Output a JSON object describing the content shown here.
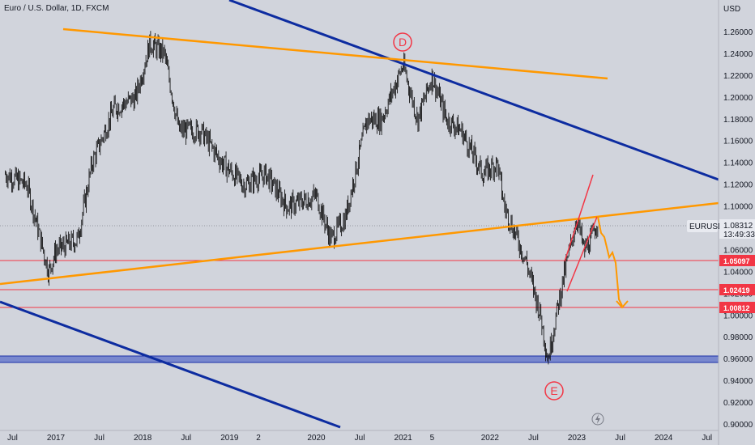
{
  "header": {
    "symbol_title": "Euro / U.S. Dollar, 1D, FXCM"
  },
  "price_axis": {
    "currency": "USD",
    "ticks": [
      "1.26000",
      "1.24000",
      "1.22000",
      "1.20000",
      "1.18000",
      "1.16000",
      "1.14000",
      "1.12000",
      "1.10000",
      "1.08000",
      "1.06000",
      "1.04000",
      "1.02000",
      "1.00000",
      "0.98000",
      "0.96000",
      "0.94000",
      "0.92000",
      "0.90000"
    ]
  },
  "time_axis": {
    "ticks": [
      "Jul",
      "2017",
      "Jul",
      "2018",
      "Jul",
      "2019",
      "2",
      "2020",
      "Jul",
      "2021",
      "5",
      "2022",
      "Jul",
      "2023",
      "Jul",
      "2024",
      "Jul"
    ]
  },
  "last_price": {
    "symbol": "EURUSD",
    "price": "1.08312",
    "countdown": "13:49:33"
  },
  "levels": [
    {
      "label": "1.05097",
      "value": 1.05097
    },
    {
      "label": "1.02419",
      "value": 1.02419
    },
    {
      "label": "1.00812",
      "value": 1.00812
    }
  ],
  "wave_labels": {
    "d": "D",
    "e": "E"
  },
  "colors": {
    "background": "#d1d4dc",
    "candles": "#000000",
    "orange_line": "#ff9800",
    "blue_line": "#0d2ca0",
    "level_red": "#f23645",
    "support_zone": "#5b6fc9",
    "price_tag_bg": "#e8eaf0"
  },
  "chart_data": {
    "type": "line",
    "title": "Euro / U.S. Dollar, 1D, FXCM",
    "x_range": [
      "2016-06",
      "2024-08"
    ],
    "ylim": [
      0.9,
      1.27
    ],
    "grid": false,
    "series": [
      {
        "x": [
          "2016-06",
          "2016-09",
          "2016-12",
          "2017-01",
          "2017-04",
          "2017-06",
          "2017-09",
          "2017-12",
          "2018-02",
          "2018-04",
          "2018-06",
          "2018-09",
          "2018-12",
          "2019-03",
          "2019-06",
          "2019-09",
          "2020-01",
          "2020-03",
          "2020-05",
          "2020-08",
          "2020-10",
          "2021-01",
          "2021-03",
          "2021-05",
          "2021-07",
          "2021-09",
          "2021-12",
          "2022-02",
          "2022-03",
          "2022-06",
          "2022-08",
          "2022-09",
          "2022-11",
          "2023-01",
          "2023-02",
          "2023-03",
          "2023-04"
        ],
        "values": [
          1.13,
          1.12,
          1.04,
          1.06,
          1.07,
          1.14,
          1.19,
          1.2,
          1.25,
          1.24,
          1.17,
          1.17,
          1.14,
          1.12,
          1.13,
          1.1,
          1.11,
          1.07,
          1.09,
          1.18,
          1.18,
          1.23,
          1.18,
          1.22,
          1.18,
          1.17,
          1.13,
          1.14,
          1.1,
          1.05,
          1.0,
          0.96,
          1.03,
          1.09,
          1.06,
          1.07,
          1.09
        ]
      }
    ],
    "trendlines": [
      {
        "color": "orange",
        "from": [
          "2016-12",
          1.265
        ],
        "to": [
          "2023-06",
          1.218
        ]
      },
      {
        "color": "orange",
        "from": [
          "2016-06",
          1.03
        ],
        "to": [
          "2024-08",
          1.1
        ]
      },
      {
        "color": "blue",
        "from": [
          "2018-11",
          1.29
        ],
        "to": [
          "2024-08",
          1.125
        ]
      },
      {
        "color": "blue",
        "from": [
          "2016-06",
          1.01
        ],
        "to": [
          "2020-03",
          0.9
        ]
      }
    ],
    "annotations": [
      {
        "text": "D",
        "x": "2020-12",
        "y": 1.235
      },
      {
        "text": "E",
        "x": "2022-09",
        "y": 0.935
      }
    ],
    "horizontal_levels": [
      1.05097,
      1.02419,
      1.00812
    ],
    "support_zone": [
      0.957,
      0.964
    ]
  }
}
